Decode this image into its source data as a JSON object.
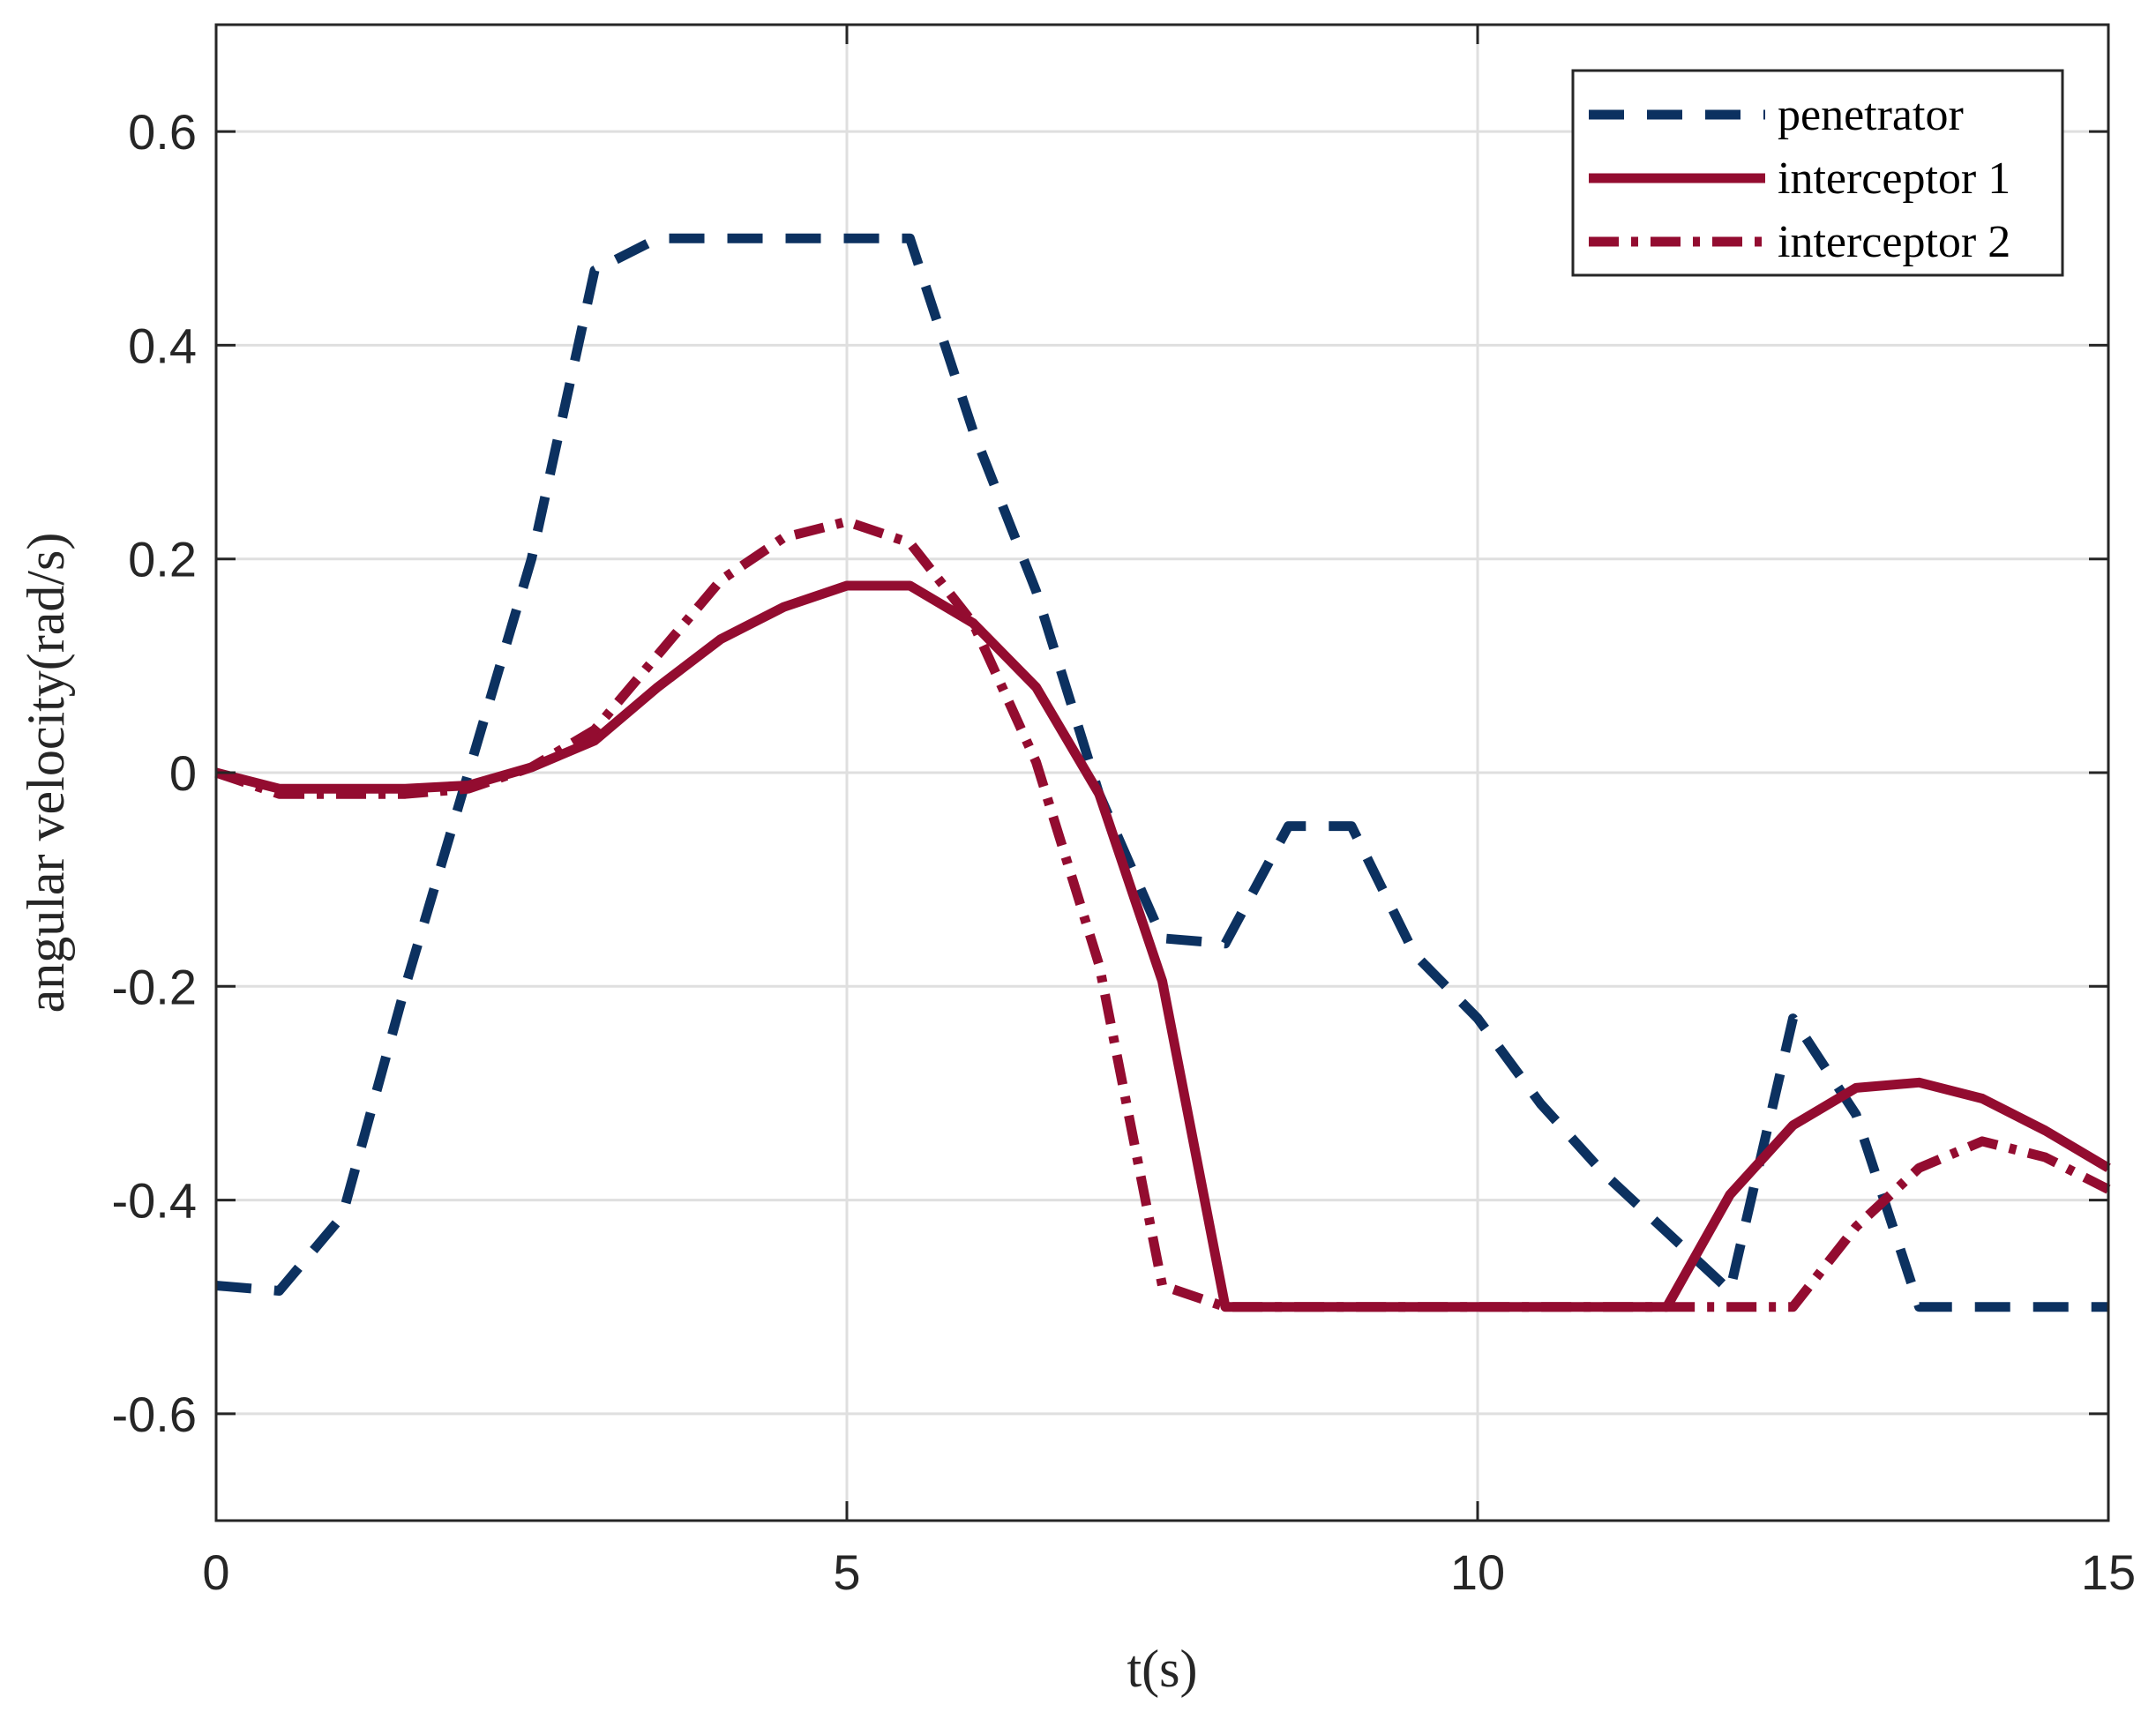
{
  "chart_data": {
    "type": "line",
    "xlabel": "t(s)",
    "ylabel": "angular velocity(rad/s)",
    "xlim": [
      0,
      15
    ],
    "ylim": [
      -0.7,
      0.7
    ],
    "xticks": [
      0,
      5,
      10,
      15
    ],
    "yticks": [
      -0.6,
      -0.4,
      -0.2,
      0,
      0.2,
      0.4,
      0.6
    ],
    "xtick_labels": [
      "0",
      "5",
      "10",
      "15"
    ],
    "ytick_labels": [
      "-0.6",
      "-0.4",
      "-0.2",
      "0",
      "0.2",
      "0.4",
      "0.6"
    ],
    "grid": true,
    "legend_position": "top-right",
    "series": [
      {
        "name": "penetrator",
        "color": "#0c3160",
        "style": "dashed",
        "x": [
          0,
          0.5,
          1,
          1.5,
          2,
          2.5,
          3,
          3.5,
          4,
          4.5,
          5,
          5.5,
          6,
          6.5,
          7,
          7.5,
          8,
          8.5,
          9,
          9.5,
          10,
          10.5,
          11,
          11.5,
          12,
          12.5,
          13,
          13.5,
          14,
          14.5,
          15
        ],
        "y": [
          -0.48,
          -0.485,
          -0.415,
          -0.2,
          0.0,
          0.2,
          0.47,
          0.5,
          0.5,
          0.5,
          0.5,
          0.5,
          0.32,
          0.17,
          -0.02,
          -0.155,
          -0.16,
          -0.05,
          -0.05,
          -0.17,
          -0.23,
          -0.31,
          -0.375,
          -0.43,
          -0.485,
          -0.23,
          -0.32,
          -0.5,
          -0.5,
          -0.5,
          -0.5
        ]
      },
      {
        "name": "interceptor 1",
        "color": "#930c30",
        "style": "solid",
        "x": [
          0,
          0.5,
          1,
          1.5,
          2,
          2.5,
          3,
          3.5,
          4,
          4.5,
          5,
          5.5,
          6,
          6.5,
          7,
          7.5,
          8,
          8.5,
          9,
          9.5,
          10,
          10.5,
          11,
          11.5,
          12,
          12.5,
          13,
          13.5,
          14,
          14.5,
          15
        ],
        "y": [
          0.0,
          -0.015,
          -0.015,
          -0.015,
          -0.012,
          0.005,
          0.03,
          0.08,
          0.125,
          0.155,
          0.175,
          0.175,
          0.14,
          0.08,
          -0.02,
          -0.195,
          -0.5,
          -0.5,
          -0.5,
          -0.5,
          -0.5,
          -0.5,
          -0.5,
          -0.5,
          -0.395,
          -0.33,
          -0.295,
          -0.29,
          -0.305,
          -0.335,
          -0.37
        ]
      },
      {
        "name": "interceptor 2",
        "color": "#930c30",
        "style": "dashdot",
        "x": [
          0,
          0.5,
          1,
          1.5,
          2,
          2.5,
          3,
          3.5,
          4,
          4.5,
          5,
          5.5,
          6,
          6.5,
          7,
          7.5,
          8,
          8.5,
          9,
          9.5,
          10,
          10.5,
          11,
          11.5,
          12,
          12.5,
          13,
          13.5,
          14,
          14.5,
          15
        ],
        "y": [
          0.0,
          -0.02,
          -0.02,
          -0.02,
          -0.015,
          0.005,
          0.04,
          0.11,
          0.18,
          0.22,
          0.235,
          0.215,
          0.14,
          0.01,
          -0.18,
          -0.48,
          -0.5,
          -0.5,
          -0.5,
          -0.5,
          -0.5,
          -0.5,
          -0.5,
          -0.5,
          -0.5,
          -0.5,
          -0.425,
          -0.37,
          -0.345,
          -0.36,
          -0.39
        ]
      }
    ]
  }
}
